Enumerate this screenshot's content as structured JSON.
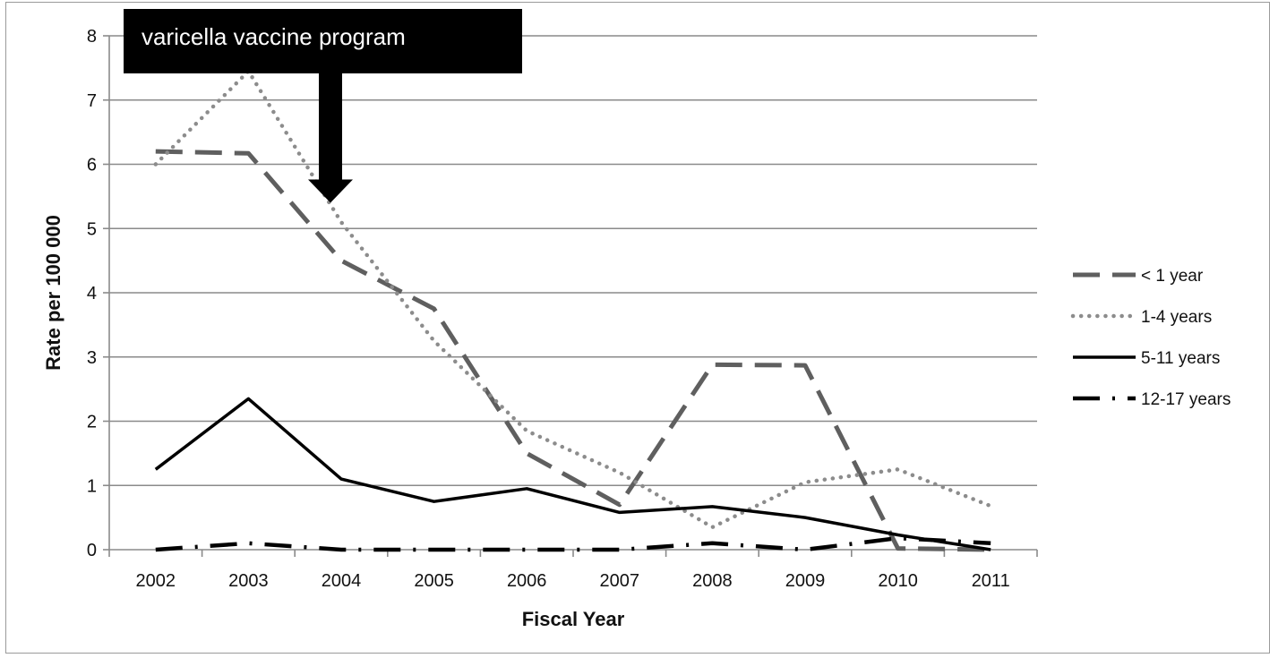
{
  "chart_data": {
    "type": "line",
    "title": "",
    "xlabel": "Fiscal Year",
    "ylabel": "Rate per 100 000",
    "ylim": [
      0,
      8
    ],
    "yticks": [
      0,
      1,
      2,
      3,
      4,
      5,
      6,
      7,
      8
    ],
    "grid": true,
    "legend_position": "right",
    "categories": [
      "2002",
      "2003",
      "2004",
      "2005",
      "2006",
      "2007",
      "2008",
      "2009",
      "2010",
      "2011"
    ],
    "series": [
      {
        "name": "< 1 year",
        "style": "dashed",
        "color": "#5f5f5f",
        "values": [
          6.2,
          6.17,
          4.5,
          3.75,
          1.5,
          0.7,
          2.88,
          2.87,
          0.02,
          0.0
        ]
      },
      {
        "name": "1-4 years",
        "style": "dotted",
        "color": "#8c8c8c",
        "values": [
          6.0,
          7.45,
          5.1,
          3.25,
          1.85,
          1.2,
          0.35,
          1.05,
          1.25,
          0.68
        ]
      },
      {
        "name": "5-11 years",
        "style": "solid",
        "color": "#000000",
        "values": [
          1.25,
          2.35,
          1.1,
          0.75,
          0.95,
          0.58,
          0.67,
          0.5,
          0.23,
          0.0
        ]
      },
      {
        "name": "12-17 years",
        "style": "dash-dot",
        "color": "#000000",
        "values": [
          0.0,
          0.1,
          0.0,
          0.0,
          0.0,
          0.0,
          0.1,
          0.0,
          0.18,
          0.1
        ]
      }
    ],
    "annotations": [
      {
        "text": "varicella vaccine program",
        "arrow_to_x": "2004",
        "arrow_to_y": 5.4
      }
    ]
  }
}
